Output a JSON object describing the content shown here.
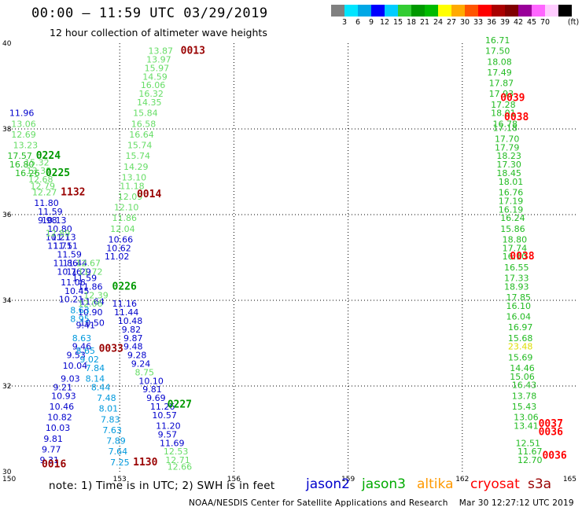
{
  "header": {
    "title": "00:00 – 11:59 UTC 03/29/2019",
    "subtitle": "12 hour collection of altimeter wave heights"
  },
  "color_scale": {
    "unit_label": "(ft)",
    "colors": [
      "#808080",
      "#00e5ff",
      "#00a8e6",
      "#0000ff",
      "#00ccff",
      "#33cc33",
      "#009900",
      "#00bb00",
      "#ffff00",
      "#ffaa00",
      "#ff5500",
      "#ff0000",
      "#aa0000",
      "#800000",
      "#990099",
      "#ff66ff",
      "#ffccff",
      "#000000"
    ],
    "ticks": [
      "3",
      "6",
      "9",
      "12",
      "15",
      "18",
      "21",
      "24",
      "27",
      "30",
      "33",
      "36",
      "39",
      "42",
      "45",
      "70"
    ]
  },
  "legend": [
    {
      "name": "jason2",
      "color": "#0000cc"
    },
    {
      "name": "jason3",
      "color": "#00aa00"
    },
    {
      "name": "altika",
      "color": "#ff9900"
    },
    {
      "name": "cryosat",
      "color": "#ff0000"
    },
    {
      "name": "s3a",
      "color": "#990000"
    }
  ],
  "footer": {
    "note": "note: 1) Time is in UTC; 2) SWH is in feet",
    "credit": "NOAA/NESDIS Center for Satellite Applications and Research    Mar 30 12:27:12 UTC 2019"
  },
  "chart_data": {
    "type": "scatter",
    "xlim": [
      150,
      165
    ],
    "ylim": [
      30,
      40
    ],
    "x_ticks": [
      "150",
      "153",
      "156",
      "159",
      "162",
      "165"
    ],
    "y_ticks": [
      "30",
      "32",
      "34",
      "36",
      "38",
      "40"
    ],
    "grid": true,
    "colors": {
      "green_light": "#66dd66",
      "green": "#22bb22",
      "green_dark": "#009900",
      "blue": "#0000cc",
      "cyan": "#0099dd",
      "yellow": "#dddd00",
      "red": "#ff0000",
      "maroon": "#990000"
    },
    "time_labels": [
      {
        "text": "0013",
        "x": 154.6,
        "y": 39.75,
        "color": "maroon"
      },
      {
        "text": "0039",
        "x": 163.0,
        "y": 38.65,
        "color": "red"
      },
      {
        "text": "0038",
        "x": 163.1,
        "y": 38.2,
        "color": "red"
      },
      {
        "text": "0224",
        "x": 150.8,
        "y": 37.3,
        "color": "green_dark"
      },
      {
        "text": "0225",
        "x": 151.05,
        "y": 36.9,
        "color": "green_dark"
      },
      {
        "text": "1132",
        "x": 151.45,
        "y": 36.45,
        "color": "maroon"
      },
      {
        "text": "0014",
        "x": 153.45,
        "y": 36.4,
        "color": "maroon"
      },
      {
        "text": "0038",
        "x": 163.25,
        "y": 34.95,
        "color": "red"
      },
      {
        "text": "0226",
        "x": 152.8,
        "y": 34.25,
        "color": "green_dark"
      },
      {
        "text": "0033",
        "x": 152.45,
        "y": 32.8,
        "color": "maroon"
      },
      {
        "text": "0227",
        "x": 154.25,
        "y": 31.5,
        "color": "green_dark"
      },
      {
        "text": "0037",
        "x": 164.0,
        "y": 31.05,
        "color": "red"
      },
      {
        "text": "0036",
        "x": 164.0,
        "y": 30.85,
        "color": "red"
      },
      {
        "text": "0036",
        "x": 164.1,
        "y": 30.3,
        "color": "red"
      },
      {
        "text": "0016",
        "x": 150.95,
        "y": 30.1,
        "color": "maroon"
      },
      {
        "text": "1130",
        "x": 153.35,
        "y": 30.15,
        "color": "maroon"
      }
    ],
    "series": [
      {
        "name": "track_153_green",
        "color": "green_light",
        "points": [
          {
            "x": 153.75,
            "y": 39.75,
            "v": "13.87"
          },
          {
            "x": 153.7,
            "y": 39.55,
            "v": "13.97"
          },
          {
            "x": 153.65,
            "y": 39.35,
            "v": "15.97"
          },
          {
            "x": 153.6,
            "y": 39.15,
            "v": "14.59"
          },
          {
            "x": 153.55,
            "y": 38.95,
            "v": "16.06"
          },
          {
            "x": 153.5,
            "y": 38.75,
            "v": "16.32"
          },
          {
            "x": 153.45,
            "y": 38.55,
            "v": "14.35"
          },
          {
            "x": 153.35,
            "y": 38.3,
            "v": "15.84"
          },
          {
            "x": 153.3,
            "y": 38.05,
            "v": "16.58"
          },
          {
            "x": 153.25,
            "y": 37.8,
            "v": "16.64"
          },
          {
            "x": 153.2,
            "y": 37.55,
            "v": "15.74"
          },
          {
            "x": 153.15,
            "y": 37.3,
            "v": "15.74"
          },
          {
            "x": 153.1,
            "y": 37.05,
            "v": "14.29"
          },
          {
            "x": 153.05,
            "y": 36.8,
            "v": "13.10"
          },
          {
            "x": 153.0,
            "y": 36.6,
            "v": "11.18"
          },
          {
            "x": 152.95,
            "y": 36.35,
            "v": "12.09"
          },
          {
            "x": 152.85,
            "y": 36.1,
            "v": "12.10"
          },
          {
            "x": 152.8,
            "y": 35.85,
            "v": "11.86"
          },
          {
            "x": 152.75,
            "y": 35.6,
            "v": "12.04"
          }
        ]
      },
      {
        "name": "track_153_blue",
        "color": "blue",
        "points": [
          {
            "x": 152.7,
            "y": 35.35,
            "v": "10.66"
          },
          {
            "x": 152.65,
            "y": 35.15,
            "v": "10.62"
          },
          {
            "x": 152.6,
            "y": 34.95,
            "v": "11.02"
          },
          {
            "x": 152.8,
            "y": 33.85,
            "v": "11.16"
          },
          {
            "x": 152.85,
            "y": 33.65,
            "v": "11.44"
          },
          {
            "x": 152.95,
            "y": 33.45,
            "v": "10.48"
          },
          {
            "x": 153.05,
            "y": 33.25,
            "v": "9.82"
          },
          {
            "x": 153.1,
            "y": 33.05,
            "v": "9.87"
          },
          {
            "x": 153.1,
            "y": 32.85,
            "v": "9.48"
          },
          {
            "x": 153.2,
            "y": 32.65,
            "v": "9.28"
          },
          {
            "x": 153.3,
            "y": 32.45,
            "v": "9.24"
          },
          {
            "x": 153.5,
            "y": 32.05,
            "v": "10.10"
          },
          {
            "x": 153.6,
            "y": 31.85,
            "v": "9.81"
          },
          {
            "x": 153.7,
            "y": 31.65,
            "v": "9.69"
          },
          {
            "x": 153.8,
            "y": 31.45,
            "v": "11.26"
          },
          {
            "x": 153.85,
            "y": 31.25,
            "v": "10.57"
          },
          {
            "x": 153.95,
            "y": 31.0,
            "v": "11.20"
          },
          {
            "x": 154.0,
            "y": 30.8,
            "v": "9.57"
          },
          {
            "x": 154.05,
            "y": 30.6,
            "v": "11.69"
          }
        ]
      },
      {
        "name": "track_153_tail",
        "color": "green_light",
        "points": [
          {
            "x": 153.4,
            "y": 32.25,
            "v": "8.75"
          },
          {
            "x": 154.15,
            "y": 30.4,
            "v": "12.53"
          },
          {
            "x": 154.2,
            "y": 30.2,
            "v": "12.71"
          },
          {
            "x": 154.25,
            "y": 30.05,
            "v": "12.66"
          }
        ]
      },
      {
        "name": "track_151_blue",
        "color": "blue",
        "points": [
          {
            "x": 150.1,
            "y": 38.3,
            "v": "11.96"
          },
          {
            "x": 150.75,
            "y": 36.2,
            "v": "11.80"
          },
          {
            "x": 150.85,
            "y": 36.0,
            "v": "11.59"
          },
          {
            "x": 150.95,
            "y": 35.8,
            "v": "10.13"
          },
          {
            "x": 151.1,
            "y": 35.6,
            "v": "10.80"
          },
          {
            "x": 151.2,
            "y": 35.4,
            "v": "11.13"
          },
          {
            "x": 151.25,
            "y": 35.2,
            "v": "11.51"
          },
          {
            "x": 151.35,
            "y": 35.0,
            "v": "11.59"
          },
          {
            "x": 151.5,
            "y": 34.8,
            "v": "11.44"
          },
          {
            "x": 151.6,
            "y": 34.6,
            "v": "11.29"
          },
          {
            "x": 151.75,
            "y": 34.45,
            "v": "11.59"
          },
          {
            "x": 151.9,
            "y": 34.25,
            "v": "11.86"
          },
          {
            "x": 151.95,
            "y": 33.9,
            "v": "11.64"
          },
          {
            "x": 151.9,
            "y": 33.65,
            "v": "10.90"
          },
          {
            "x": 151.95,
            "y": 33.4,
            "v": "10.50"
          },
          {
            "x": 150.85,
            "y": 35.8,
            "v": "9.98"
          },
          {
            "x": 151.05,
            "y": 35.4,
            "v": "10.21"
          },
          {
            "x": 151.1,
            "y": 35.2,
            "v": "11.71"
          },
          {
            "x": 151.25,
            "y": 34.8,
            "v": "11.86"
          },
          {
            "x": 151.35,
            "y": 34.6,
            "v": "10.76"
          },
          {
            "x": 151.45,
            "y": 34.35,
            "v": "11.06"
          },
          {
            "x": 151.55,
            "y": 34.15,
            "v": "10.45"
          },
          {
            "x": 151.4,
            "y": 33.95,
            "v": "10.21"
          },
          {
            "x": 151.85,
            "y": 33.35,
            "v": "9.41"
          },
          {
            "x": 151.75,
            "y": 32.85,
            "v": "9.46"
          },
          {
            "x": 151.6,
            "y": 32.65,
            "v": "9.53"
          },
          {
            "x": 151.5,
            "y": 32.4,
            "v": "10.04"
          },
          {
            "x": 151.45,
            "y": 32.1,
            "v": "9.03"
          },
          {
            "x": 151.25,
            "y": 31.9,
            "v": "9.21"
          },
          {
            "x": 151.2,
            "y": 31.7,
            "v": "10.93"
          },
          {
            "x": 151.15,
            "y": 31.45,
            "v": "10.46"
          },
          {
            "x": 151.1,
            "y": 31.2,
            "v": "10.82"
          },
          {
            "x": 151.05,
            "y": 30.95,
            "v": "10.03"
          },
          {
            "x": 151.0,
            "y": 30.7,
            "v": "9.81"
          },
          {
            "x": 150.95,
            "y": 30.45,
            "v": "9.77"
          },
          {
            "x": 150.9,
            "y": 30.2,
            "v": "9.31"
          }
        ]
      },
      {
        "name": "track_151_cyan",
        "color": "cyan",
        "points": [
          {
            "x": 151.7,
            "y": 33.7,
            "v": "8.63"
          },
          {
            "x": 151.7,
            "y": 33.5,
            "v": "8.95"
          },
          {
            "x": 151.75,
            "y": 33.05,
            "v": "8.63"
          },
          {
            "x": 151.85,
            "y": 32.75,
            "v": "8.65"
          },
          {
            "x": 151.95,
            "y": 32.55,
            "v": "9.02"
          },
          {
            "x": 152.1,
            "y": 32.35,
            "v": "7.84"
          },
          {
            "x": 152.1,
            "y": 32.1,
            "v": "8.14"
          },
          {
            "x": 152.25,
            "y": 31.9,
            "v": "8.44"
          },
          {
            "x": 152.4,
            "y": 31.65,
            "v": "7.48"
          },
          {
            "x": 152.45,
            "y": 31.4,
            "v": "8.01"
          },
          {
            "x": 152.5,
            "y": 31.15,
            "v": "7.83"
          },
          {
            "x": 152.55,
            "y": 30.9,
            "v": "7.63"
          },
          {
            "x": 152.65,
            "y": 30.65,
            "v": "7.89"
          },
          {
            "x": 152.7,
            "y": 30.4,
            "v": "7.64"
          },
          {
            "x": 152.75,
            "y": 30.15,
            "v": "7.25"
          }
        ]
      },
      {
        "name": "track_151_green",
        "color": "green_light",
        "points": [
          {
            "x": 150.15,
            "y": 38.05,
            "v": "13.06"
          },
          {
            "x": 150.15,
            "y": 37.8,
            "v": "12.69"
          },
          {
            "x": 150.2,
            "y": 37.55,
            "v": "13.23"
          },
          {
            "x": 150.5,
            "y": 37.15,
            "v": "15.32"
          },
          {
            "x": 150.55,
            "y": 36.95,
            "v": "13.38"
          },
          {
            "x": 150.6,
            "y": 36.75,
            "v": "12.68"
          },
          {
            "x": 150.65,
            "y": 36.6,
            "v": "12.79"
          },
          {
            "x": 150.7,
            "y": 36.45,
            "v": "12.27"
          },
          {
            "x": 151.05,
            "y": 35.5,
            "v": "12.89"
          },
          {
            "x": 151.85,
            "y": 34.8,
            "v": "12.67"
          },
          {
            "x": 151.9,
            "y": 34.6,
            "v": "11.72"
          },
          {
            "x": 152.05,
            "y": 34.05,
            "v": "12.39"
          },
          {
            "x": 151.9,
            "y": 33.85,
            "v": "12.06"
          }
        ]
      },
      {
        "name": "track_151_darkgreen",
        "color": "green",
        "points": [
          {
            "x": 150.05,
            "y": 37.3,
            "v": "17.57"
          },
          {
            "x": 150.1,
            "y": 37.1,
            "v": "16.80"
          },
          {
            "x": 150.25,
            "y": 36.9,
            "v": "16.26"
          }
        ]
      },
      {
        "name": "track_162",
        "color": "green",
        "points": [
          {
            "x": 162.6,
            "y": 40.0,
            "v": "16.71"
          },
          {
            "x": 162.6,
            "y": 39.75,
            "v": "17.50"
          },
          {
            "x": 162.65,
            "y": 39.5,
            "v": "18.08"
          },
          {
            "x": 162.65,
            "y": 39.25,
            "v": "17.49"
          },
          {
            "x": 162.7,
            "y": 39.0,
            "v": "17.87"
          },
          {
            "x": 162.7,
            "y": 38.75,
            "v": "17.93"
          },
          {
            "x": 162.75,
            "y": 38.5,
            "v": "17.28"
          },
          {
            "x": 162.75,
            "y": 38.3,
            "v": "18.01"
          },
          {
            "x": 162.8,
            "y": 38.05,
            "v": "16.78"
          },
          {
            "x": 162.8,
            "y": 37.95,
            "v": "17.18"
          },
          {
            "x": 162.85,
            "y": 37.7,
            "v": "17.70"
          },
          {
            "x": 162.85,
            "y": 37.5,
            "v": "17.79"
          },
          {
            "x": 162.9,
            "y": 37.3,
            "v": "18.23"
          },
          {
            "x": 162.9,
            "y": 37.1,
            "v": "17.30"
          },
          {
            "x": 162.9,
            "y": 36.9,
            "v": "18.45"
          },
          {
            "x": 162.95,
            "y": 36.7,
            "v": "18.01"
          },
          {
            "x": 162.95,
            "y": 36.45,
            "v": "16.76"
          },
          {
            "x": 162.95,
            "y": 36.25,
            "v": "17.19"
          },
          {
            "x": 162.95,
            "y": 36.05,
            "v": "16.19"
          },
          {
            "x": 163.0,
            "y": 35.85,
            "v": "16.24"
          },
          {
            "x": 163.0,
            "y": 35.6,
            "v": "15.86"
          },
          {
            "x": 163.05,
            "y": 35.35,
            "v": "18.80"
          },
          {
            "x": 163.05,
            "y": 35.15,
            "v": "17.74"
          },
          {
            "x": 163.05,
            "y": 34.95,
            "v": "16.10"
          },
          {
            "x": 163.1,
            "y": 34.7,
            "v": "16.55"
          },
          {
            "x": 163.1,
            "y": 34.45,
            "v": "17.33"
          },
          {
            "x": 163.1,
            "y": 34.25,
            "v": "18.93"
          },
          {
            "x": 163.15,
            "y": 34.0,
            "v": "17.85"
          },
          {
            "x": 163.15,
            "y": 33.8,
            "v": "16.10"
          },
          {
            "x": 163.15,
            "y": 33.55,
            "v": "16.04"
          },
          {
            "x": 163.2,
            "y": 33.3,
            "v": "16.97"
          },
          {
            "x": 163.2,
            "y": 33.05,
            "v": "15.68"
          },
          {
            "x": 163.2,
            "y": 32.6,
            "v": "15.69"
          },
          {
            "x": 163.25,
            "y": 32.35,
            "v": "14.46"
          },
          {
            "x": 163.25,
            "y": 32.15,
            "v": "15.06"
          },
          {
            "x": 163.3,
            "y": 31.95,
            "v": "16.43"
          },
          {
            "x": 163.3,
            "y": 31.7,
            "v": "13.78"
          },
          {
            "x": 163.3,
            "y": 31.45,
            "v": "15.43"
          },
          {
            "x": 163.35,
            "y": 31.2,
            "v": "13.06"
          },
          {
            "x": 163.35,
            "y": 31.0,
            "v": "13.41"
          },
          {
            "x": 163.4,
            "y": 30.6,
            "v": "12.51"
          },
          {
            "x": 163.45,
            "y": 30.4,
            "v": "11.67"
          },
          {
            "x": 163.45,
            "y": 30.2,
            "v": "12.70"
          }
        ]
      },
      {
        "name": "track_162_highlight",
        "color": "yellow",
        "points": [
          {
            "x": 163.2,
            "y": 32.85,
            "v": "23.48"
          }
        ]
      }
    ]
  }
}
